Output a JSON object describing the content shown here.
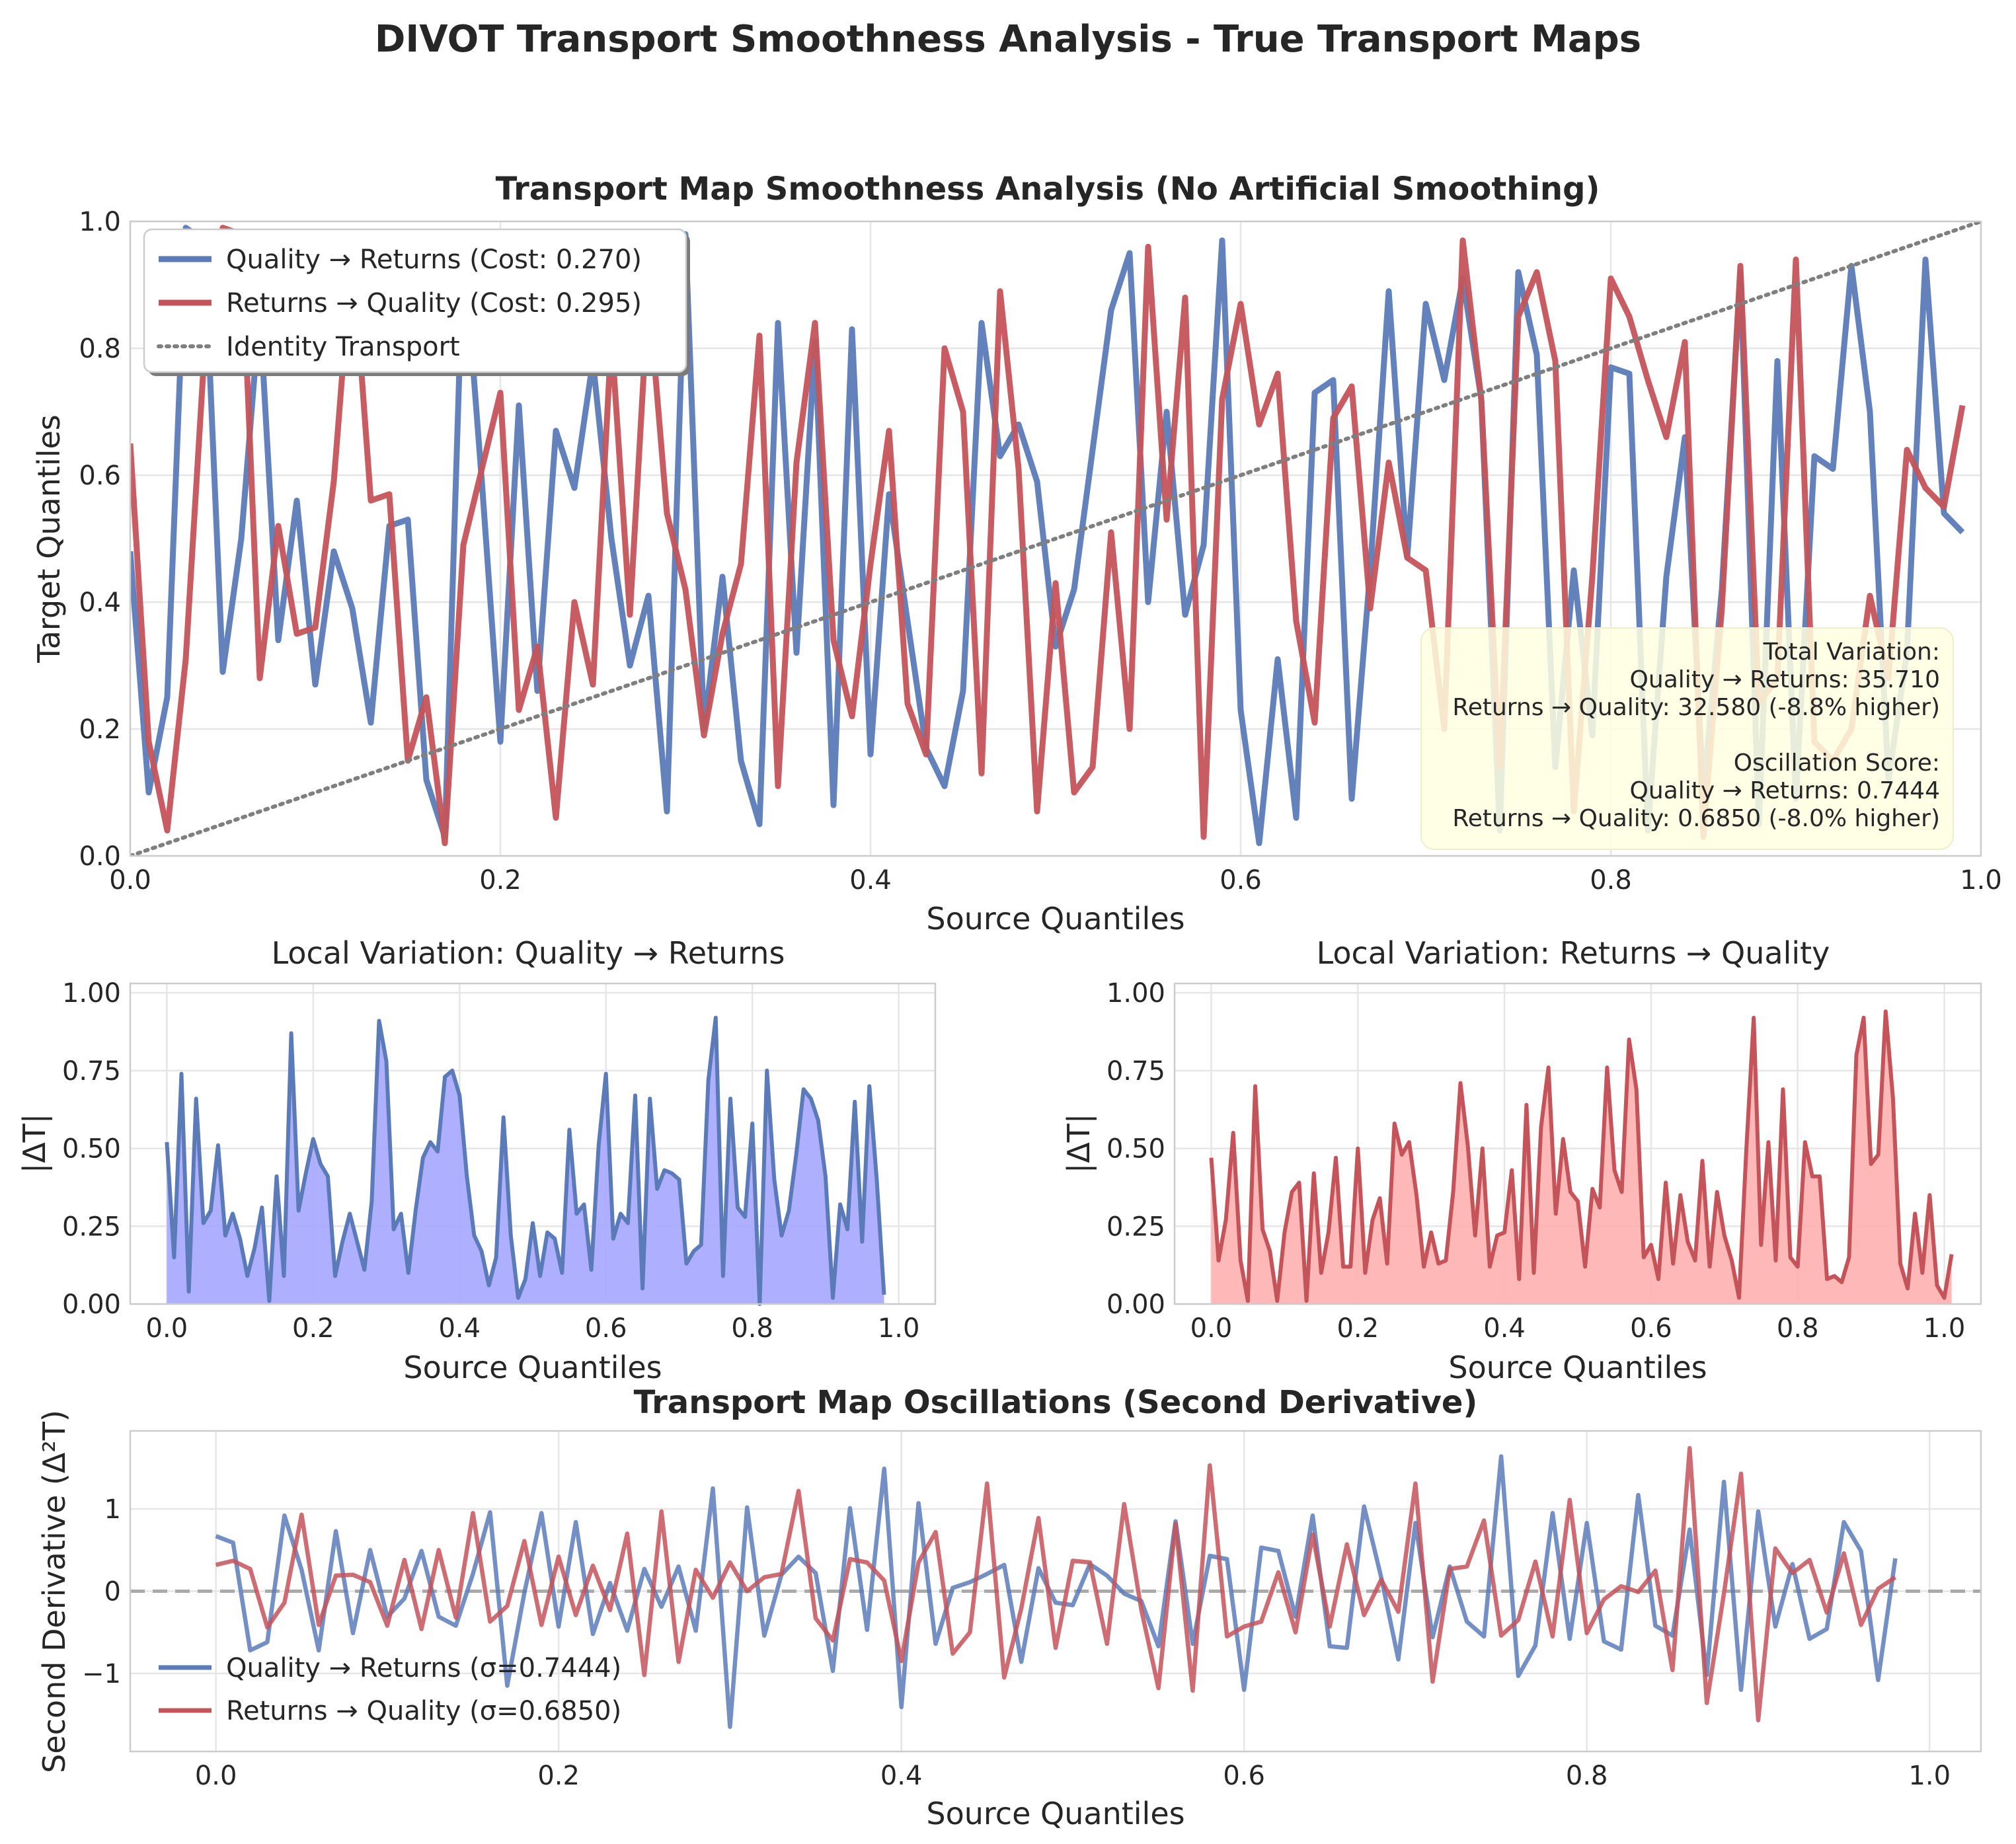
{
  "title": "DIVOT Transport Smoothness Analysis - True Transport Maps",
  "colors": {
    "blue": "#5b7bb8",
    "red": "#c4545a",
    "blue_fill": "#a6a6ff",
    "red_fill": "#ffb0b0",
    "identity": "#7f7f7f",
    "note_bg": "#ffffe0"
  },
  "panels": {
    "main": {
      "title": "Transport Map Smoothness Analysis (No Artificial Smoothing)",
      "xlabel": "Source Quantiles",
      "ylabel": "Target Quantiles",
      "xticks": [
        "0.0",
        "0.2",
        "0.4",
        "0.6",
        "0.8",
        "1.0"
      ],
      "yticks": [
        "0.0",
        "0.2",
        "0.4",
        "0.6",
        "0.8",
        "1.0"
      ],
      "legend": [
        "Quality → Returns (Cost: 0.270)",
        "Returns → Quality (Cost: 0.295)",
        "Identity Transport"
      ],
      "annotation": [
        "Total Variation:",
        "Quality → Returns: 35.710",
        "Returns → Quality: 32.580 (-8.8% higher)",
        "",
        "Oscillation Score:",
        "Quality → Returns: 0.7444",
        "Returns → Quality: 0.6850 (-8.0% higher)"
      ]
    },
    "local_qr": {
      "title": "Local Variation: Quality → Returns",
      "xlabel": "Source Quantiles",
      "ylabel": "|ΔT|",
      "xticks": [
        "0.0",
        "0.2",
        "0.4",
        "0.6",
        "0.8",
        "1.0"
      ],
      "yticks": [
        "0.00",
        "0.25",
        "0.50",
        "0.75",
        "1.00"
      ]
    },
    "local_rq": {
      "title": "Local Variation: Returns → Quality",
      "xlabel": "Source Quantiles",
      "ylabel": "|ΔT|",
      "xticks": [
        "0.0",
        "0.2",
        "0.4",
        "0.6",
        "0.8",
        "1.0"
      ],
      "yticks": [
        "0.00",
        "0.25",
        "0.50",
        "0.75",
        "1.00"
      ]
    },
    "second": {
      "title": "Transport Map Oscillations (Second Derivative)",
      "xlabel": "Source Quantiles",
      "ylabel": "Second Derivative (Δ²T)",
      "xticks": [
        "0.0",
        "0.2",
        "0.4",
        "0.6",
        "0.8",
        "1.0"
      ],
      "yticks": [
        "−1",
        "0",
        "1"
      ],
      "legend": [
        "Quality → Returns (σ=0.7444)",
        "Returns → Quality (σ=0.6850)"
      ]
    }
  },
  "chart_data": [
    {
      "type": "line",
      "title": "Transport Map Smoothness Analysis (No Artificial Smoothing)",
      "xlabel": "Source Quantiles",
      "ylabel": "Target Quantiles",
      "xlim": [
        0,
        1
      ],
      "ylim": [
        0,
        1
      ],
      "legend_position": "upper-left",
      "grid": true,
      "x_start": 0,
      "x_step": 0.01,
      "series": [
        {
          "name": "Quality → Returns (Cost: 0.270)",
          "color": "#5b7bb8",
          "values": [
            0.48,
            0.1,
            0.25,
            0.99,
            0.97,
            0.29,
            0.5,
            0.86,
            0.34,
            0.56,
            0.27,
            0.48,
            0.39,
            0.21,
            0.52,
            0.53,
            0.12,
            0.03,
            0.97,
            0.59,
            0.18,
            0.71,
            0.26,
            0.67,
            0.58,
            0.78,
            0.5,
            0.3,
            0.41,
            0.07,
            0.98,
            0.2,
            0.44,
            0.15,
            0.05,
            0.84,
            0.32,
            0.81,
            0.08,
            0.83,
            0.16,
            0.57,
            0.37,
            0.17,
            0.11,
            0.26,
            0.84,
            0.63,
            0.68,
            0.59,
            0.33,
            0.42,
            0.64,
            0.86,
            0.95,
            0.4,
            0.7,
            0.38,
            0.49,
            0.97,
            0.23,
            0.02,
            0.31,
            0.06,
            0.73,
            0.75,
            0.09,
            0.45,
            0.89,
            0.47,
            0.87,
            0.75,
            0.91,
            0.72,
            0.04,
            0.92,
            0.79,
            0.14,
            0.45,
            0.19,
            0.77,
            0.76,
            0.04,
            0.44,
            0.66,
            0.1,
            0.42,
            0.92,
            0.05,
            0.78,
            0.09,
            0.63,
            0.61,
            0.93,
            0.7,
            0.12,
            0.32,
            0.94,
            0.54,
            0.51
          ]
        },
        {
          "name": "Returns → Quality (Cost: 0.295)",
          "color": "#c4545a",
          "values": [
            0.65,
            0.18,
            0.04,
            0.31,
            0.79,
            0.99,
            0.98,
            0.28,
            0.52,
            0.35,
            0.36,
            0.59,
            0.96,
            0.56,
            0.57,
            0.15,
            0.25,
            0.02,
            0.49,
            0.61,
            0.73,
            0.23,
            0.33,
            0.06,
            0.4,
            0.27,
            0.82,
            0.38,
            0.89,
            0.54,
            0.42,
            0.19,
            0.35,
            0.46,
            0.82,
            0.11,
            0.62,
            0.84,
            0.34,
            0.22,
            0.46,
            0.67,
            0.24,
            0.16,
            0.8,
            0.7,
            0.13,
            0.89,
            0.61,
            0.07,
            0.43,
            0.1,
            0.14,
            0.51,
            0.2,
            0.96,
            0.53,
            0.88,
            0.03,
            0.72,
            0.87,
            0.68,
            0.76,
            0.37,
            0.21,
            0.69,
            0.74,
            0.39,
            0.62,
            0.47,
            0.45,
            0.2,
            0.97,
            0.72,
            0.14,
            0.85,
            0.92,
            0.78,
            0.07,
            0.44,
            0.91,
            0.85,
            0.75,
            0.66,
            0.81,
            0.03,
            0.39,
            0.93,
            0.24,
            0.28,
            0.94,
            0.18,
            0.15,
            0.2,
            0.41,
            0.28,
            0.64,
            0.58,
            0.55,
            0.71
          ]
        },
        {
          "name": "Identity Transport",
          "color": "#7f7f7f",
          "style": "dotted",
          "x": [
            0,
            1
          ],
          "y": [
            0,
            1
          ]
        }
      ]
    },
    {
      "type": "area",
      "title": "Local Variation: Quality → Returns",
      "xlabel": "Source Quantiles",
      "ylabel": "|ΔT|",
      "xlim": [
        -0.05,
        1.05
      ],
      "ylim": [
        0,
        1.03
      ],
      "x_start": 0,
      "x_step": 0.01,
      "series": [
        {
          "name": "",
          "color": "#5b7bb8",
          "values": [
            0.52,
            0.15,
            0.74,
            0.04,
            0.66,
            0.26,
            0.3,
            0.51,
            0.22,
            0.29,
            0.21,
            0.09,
            0.18,
            0.31,
            0.01,
            0.41,
            0.09,
            0.87,
            0.3,
            0.42,
            0.53,
            0.45,
            0.41,
            0.09,
            0.2,
            0.29,
            0.2,
            0.11,
            0.33,
            0.91,
            0.78,
            0.24,
            0.29,
            0.1,
            0.3,
            0.47,
            0.52,
            0.49,
            0.73,
            0.75,
            0.67,
            0.41,
            0.22,
            0.17,
            0.06,
            0.15,
            0.6,
            0.22,
            0.02,
            0.08,
            0.26,
            0.09,
            0.23,
            0.21,
            0.1,
            0.56,
            0.29,
            0.32,
            0.11,
            0.51,
            0.74,
            0.21,
            0.29,
            0.26,
            0.67,
            0.05,
            0.66,
            0.37,
            0.43,
            0.42,
            0.4,
            0.13,
            0.17,
            0.19,
            0.72,
            0.92,
            0.09,
            0.66,
            0.31,
            0.28,
            0.58,
            0.0,
            0.75,
            0.4,
            0.22,
            0.3,
            0.48,
            0.69,
            0.66,
            0.59,
            0.41,
            0.02,
            0.32,
            0.24,
            0.65,
            0.2,
            0.7,
            0.4,
            0.03
          ]
        }
      ]
    },
    {
      "type": "area",
      "title": "Local Variation: Returns → Quality",
      "xlabel": "Source Quantiles",
      "ylabel": "|ΔT|",
      "xlim": [
        -0.05,
        1.05
      ],
      "ylim": [
        0,
        1.03
      ],
      "x_start": 0,
      "x_step": 0.01,
      "series": [
        {
          "name": "",
          "color": "#c4545a",
          "values": [
            0.47,
            0.14,
            0.27,
            0.55,
            0.14,
            0.01,
            0.7,
            0.24,
            0.17,
            0.01,
            0.23,
            0.36,
            0.39,
            0.01,
            0.42,
            0.1,
            0.23,
            0.47,
            0.12,
            0.12,
            0.5,
            0.1,
            0.27,
            0.34,
            0.13,
            0.58,
            0.48,
            0.52,
            0.35,
            0.12,
            0.23,
            0.13,
            0.14,
            0.36,
            0.71,
            0.51,
            0.22,
            0.5,
            0.12,
            0.22,
            0.23,
            0.43,
            0.08,
            0.64,
            0.1,
            0.57,
            0.76,
            0.29,
            0.53,
            0.36,
            0.33,
            0.12,
            0.37,
            0.31,
            0.76,
            0.43,
            0.36,
            0.85,
            0.69,
            0.15,
            0.19,
            0.08,
            0.39,
            0.13,
            0.35,
            0.2,
            0.14,
            0.46,
            0.12,
            0.36,
            0.22,
            0.14,
            0.02,
            0.5,
            0.92,
            0.19,
            0.52,
            0.14,
            0.69,
            0.15,
            0.12,
            0.52,
            0.41,
            0.41,
            0.08,
            0.09,
            0.07,
            0.15,
            0.8,
            0.92,
            0.45,
            0.48,
            0.94,
            0.66,
            0.13,
            0.05,
            0.29,
            0.1,
            0.35,
            0.06,
            0.02,
            0.16
          ]
        }
      ]
    },
    {
      "type": "line",
      "title": "Transport Map Oscillations (Second Derivative)",
      "xlabel": "Source Quantiles",
      "ylabel": "Second Derivative (Δ²T)",
      "xlim": [
        -0.05,
        1.03
      ],
      "ylim": [
        -1.95,
        1.95
      ],
      "legend_position": "lower-left",
      "grid": true,
      "reference_line": 0,
      "x_start": 0,
      "x_step": 0.01,
      "series": [
        {
          "name": "Quality → Returns (σ=0.7444)",
          "color": "#5b7bb8",
          "values": [
            0.67,
            0.59,
            -0.72,
            -0.62,
            0.92,
            0.26,
            -0.72,
            0.73,
            -0.51,
            0.5,
            -0.31,
            -0.09,
            0.49,
            -0.31,
            -0.42,
            0.21,
            0.96,
            -1.15,
            -0.02,
            0.95,
            -0.43,
            0.84,
            -0.52,
            0.1,
            -0.48,
            0.27,
            -0.19,
            0.3,
            -0.48,
            1.25,
            -1.65,
            1.02,
            -0.54,
            0.2,
            0.42,
            0.22,
            -0.97,
            1.01,
            -0.47,
            1.49,
            -1.41,
            1.07,
            -0.64,
            0.04,
            0.11,
            0.21,
            0.32,
            -0.86,
            0.28,
            -0.14,
            -0.17,
            0.33,
            0.19,
            -0.03,
            -0.12,
            -0.67,
            0.85,
            -0.64,
            0.43,
            0.39,
            -1.2,
            0.53,
            0.49,
            -0.31,
            0.92,
            -0.67,
            -0.69,
            1.03,
            0.17,
            -0.83,
            0.83,
            -0.56,
            0.3,
            -0.37,
            -0.55,
            1.64,
            -1.03,
            -0.66,
            0.95,
            -0.58,
            0.83,
            -0.61,
            -0.71,
            1.17,
            -0.42,
            -0.54,
            0.75,
            -1.02,
            1.33,
            -1.2,
            0.97,
            -0.43,
            0.33,
            -0.58,
            -0.46,
            0.84,
            0.49,
            -1.08,
            0.4
          ]
        },
        {
          "name": "Returns → Quality (σ=0.6850)",
          "color": "#c4545a",
          "values": [
            0.32,
            0.37,
            0.27,
            -0.44,
            -0.14,
            0.93,
            -0.41,
            0.19,
            0.2,
            0.11,
            -0.42,
            0.38,
            -0.46,
            0.5,
            -0.32,
            0.95,
            -0.37,
            -0.18,
            0.61,
            -0.41,
            0.42,
            -0.29,
            0.31,
            -0.23,
            0.7,
            -1.02,
            0.97,
            -0.86,
            0.26,
            -0.08,
            0.35,
            0.0,
            0.17,
            0.21,
            1.22,
            -0.33,
            -0.6,
            0.39,
            0.35,
            0.13,
            -0.85,
            0.35,
            0.72,
            -0.76,
            -0.5,
            1.31,
            -1.05,
            -0.21,
            0.89,
            -0.69,
            0.37,
            0.35,
            -0.64,
            1.06,
            -0.22,
            -1.18,
            0.82,
            -1.21,
            1.53,
            -0.55,
            -0.43,
            -0.37,
            0.23,
            -0.5,
            0.69,
            -0.43,
            0.57,
            -0.29,
            0.14,
            -0.25,
            1.31,
            -1.1,
            0.27,
            0.3,
            0.86,
            -0.54,
            -0.35,
            0.36,
            -0.55,
            1.11,
            -0.51,
            -0.1,
            0.06,
            -0.01,
            0.25,
            -0.96,
            1.74,
            -1.36,
            -0.03,
            1.43,
            -1.57,
            0.52,
            0.22,
            0.38,
            -0.26,
            0.46,
            -0.41,
            0.03,
            0.17
          ]
        }
      ]
    }
  ]
}
